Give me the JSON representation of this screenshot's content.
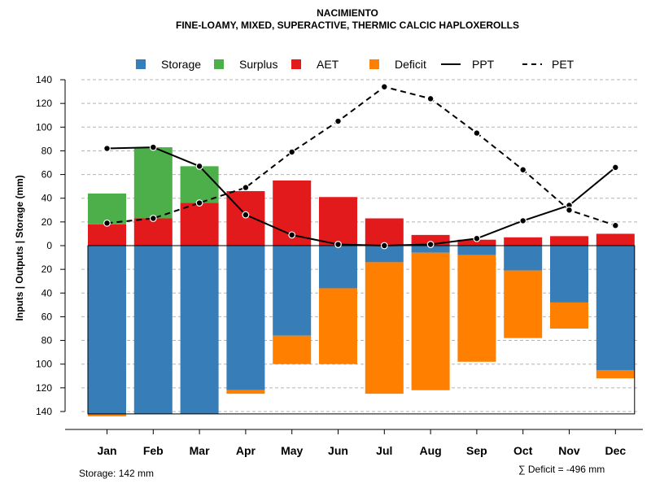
{
  "chart_data": {
    "type": "bar",
    "title": "NACIMIENTO",
    "subtitle": "FINE-LOAMY, MIXED, SUPERACTIVE, THERMIC CALCIC HAPLOXEROLLS",
    "ylabel": "Inputs | Outputs | Storage    (mm)",
    "xlabel": "",
    "categories": [
      "Jan",
      "Feb",
      "Mar",
      "Apr",
      "May",
      "Jun",
      "Jul",
      "Aug",
      "Sep",
      "Oct",
      "Nov",
      "Dec"
    ],
    "ylim": [
      -145,
      140
    ],
    "yticks": [
      140,
      120,
      100,
      80,
      60,
      40,
      20,
      0,
      -20,
      -40,
      -60,
      -80,
      -100,
      -120,
      -140
    ],
    "ytick_labels": [
      "140",
      "120",
      "100",
      "80",
      "60",
      "40",
      "20",
      "0",
      "20",
      "40",
      "60",
      "80",
      "100",
      "120",
      "140"
    ],
    "grid": true,
    "legend": [
      "Storage",
      "Surplus",
      "AET",
      "Deficit",
      "PPT",
      "PET"
    ],
    "legend_position": "top",
    "series": [
      {
        "name": "AET",
        "color": "#E31A1C",
        "values": [
          18,
          23,
          36,
          46,
          55,
          41,
          23,
          9,
          5,
          7,
          8,
          10
        ]
      },
      {
        "name": "Surplus",
        "color": "#4DAF4A",
        "values": [
          26,
          60,
          31,
          0,
          0,
          0,
          0,
          0,
          0,
          0,
          0,
          0
        ]
      },
      {
        "name": "Storage",
        "color": "#377EB8",
        "values": [
          142,
          142,
          142,
          122,
          76,
          36,
          14,
          6,
          8,
          21,
          48,
          105
        ]
      },
      {
        "name": "Deficit",
        "color": "#FF7F00",
        "values": [
          2,
          0,
          0,
          3,
          24,
          64,
          111,
          116,
          90,
          57,
          22,
          7
        ]
      },
      {
        "name": "PPT",
        "color": "#000000",
        "line": "solid",
        "values": [
          82,
          83,
          67,
          26,
          9,
          1,
          0,
          1,
          6,
          21,
          34,
          66
        ]
      },
      {
        "name": "PET",
        "color": "#000000",
        "line": "dashed",
        "values": [
          19,
          23,
          36,
          49,
          79,
          105,
          134,
          124,
          95,
          64,
          30,
          17
        ]
      }
    ]
  },
  "footer": {
    "storage": "Storage: 142 mm",
    "deficit": "∑ Deficit = -496 mm"
  }
}
